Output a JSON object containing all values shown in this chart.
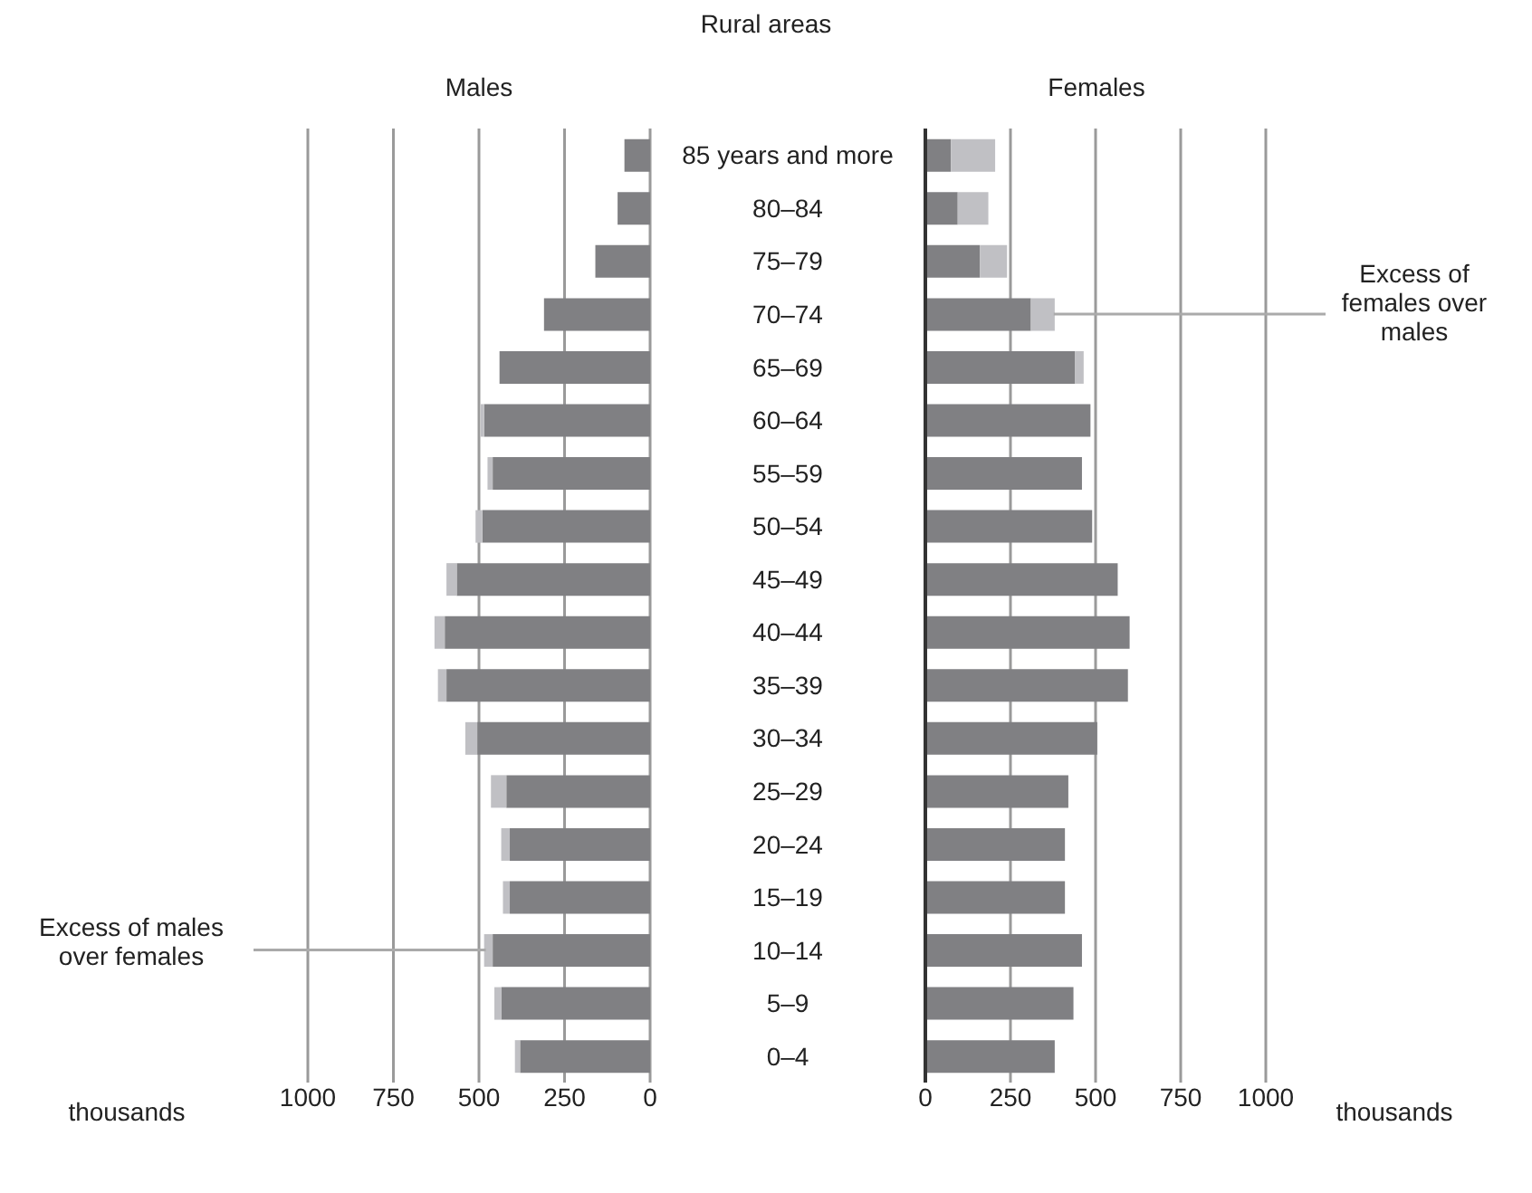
{
  "chart_data": [
    {
      "type": "bar",
      "orientation": "horizontal",
      "stacked": true,
      "title": "Males",
      "xlabel": "thousands",
      "annotations": [
        "Rural areas",
        {
          "text": "Excess of males over females",
          "x": 480,
          "y": "10–14"
        }
      ],
      "categories": [
        "85 years and more",
        "80–84",
        "75–79",
        "70–74",
        "65–69",
        "60–64",
        "55–59",
        "50–54",
        "45–49",
        "40–44",
        "35–39",
        "30–34",
        "25–29",
        "20–24",
        "15–19",
        "10–14",
        "5–9",
        "0–4"
      ],
      "series": [
        {
          "color": "#808083",
          "values": [
            75,
            95,
            160,
            310,
            440,
            485,
            460,
            490,
            565,
            600,
            595,
            505,
            420,
            410,
            410,
            460,
            435,
            380
          ]
        },
        {
          "color": "#c0c0c4",
          "values": [
            0,
            0,
            0,
            0,
            0,
            10,
            15,
            20,
            30,
            30,
            25,
            35,
            45,
            25,
            20,
            25,
            20,
            15
          ]
        }
      ],
      "xlim": [
        1000,
        0
      ],
      "xticks": [
        1000,
        750,
        500,
        250,
        0
      ],
      "grid": "x",
      "tick_labels": "x"
    },
    {
      "type": "bar",
      "orientation": "horizontal",
      "stacked": true,
      "title": "Females",
      "xlabel": "thousands",
      "annotations": [
        {
          "text": "Excess of females over males",
          "x": 375,
          "y": "70–74"
        }
      ],
      "categories": [
        "85 years and more",
        "80–84",
        "75–79",
        "70–74",
        "65–69",
        "60–64",
        "55–59",
        "50–54",
        "45–49",
        "40–44",
        "35–39",
        "30–34",
        "25–29",
        "20–24",
        "15–19",
        "10–14",
        "5–9",
        "0–4"
      ],
      "series": [
        {
          "color": "#808083",
          "values": [
            75,
            95,
            160,
            310,
            440,
            485,
            460,
            490,
            565,
            600,
            595,
            505,
            420,
            410,
            410,
            460,
            435,
            380
          ]
        },
        {
          "color": "#c0c0c4",
          "values": [
            130,
            90,
            80,
            70,
            25,
            0,
            0,
            0,
            0,
            0,
            0,
            0,
            0,
            0,
            0,
            0,
            0,
            0
          ]
        }
      ],
      "xlim": [
        0,
        1000
      ],
      "xticks": [
        0,
        250,
        500,
        750,
        1000
      ],
      "grid": "x"
    }
  ]
}
